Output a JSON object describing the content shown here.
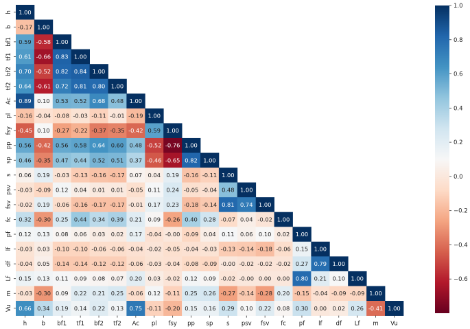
{
  "chart_data": {
    "type": "heatmap",
    "title": "",
    "xlabel": "",
    "ylabel": "",
    "labels": [
      "h",
      "b",
      "bf1",
      "tf1",
      "bf2",
      "tf2",
      "Ac",
      "pl",
      "fsy",
      "pp",
      "sp",
      "s",
      "psv",
      "fsv",
      "fc",
      "pf",
      "lf",
      "df",
      "Lf",
      "m",
      "Vu"
    ],
    "matrix": [
      [
        "1.00"
      ],
      [
        "-0.17",
        "1.00"
      ],
      [
        "0.59",
        "-0.58",
        "1.00"
      ],
      [
        "0.61",
        "-0.66",
        "0.83",
        "1.00"
      ],
      [
        "0.70",
        "-0.52",
        "0.82",
        "0.84",
        "1.00"
      ],
      [
        "0.64",
        "-0.61",
        "0.72",
        "0.81",
        "0.80",
        "1.00"
      ],
      [
        "0.89",
        "0.10",
        "0.53",
        "0.52",
        "0.68",
        "0.48",
        "1.00"
      ],
      [
        "-0.16",
        "-0.04",
        "-0.08",
        "-0.03",
        "-0.11",
        "-0.01",
        "-0.19",
        "1.00"
      ],
      [
        "-0.45",
        "0.10",
        "-0.27",
        "-0.22",
        "-0.37",
        "-0.35",
        "-0.42",
        "0.59",
        "1.00"
      ],
      [
        "0.56",
        "-0.42",
        "0.56",
        "0.58",
        "0.64",
        "0.60",
        "0.48",
        "-0.52",
        "-0.76",
        "1.00"
      ],
      [
        "0.46",
        "-0.35",
        "0.47",
        "0.44",
        "0.52",
        "0.51",
        "0.37",
        "-0.46",
        "-0.65",
        "0.82",
        "1.00"
      ],
      [
        "0.06",
        "0.19",
        "-0.03",
        "-0.13",
        "-0.16",
        "-0.17",
        "0.07",
        "0.04",
        "0.19",
        "-0.16",
        "-0.11",
        "1.00"
      ],
      [
        "-0.03",
        "-0.09",
        "0.12",
        "0.04",
        "0.01",
        "0.01",
        "-0.05",
        "0.11",
        "0.24",
        "-0.05",
        "-0.04",
        "0.48",
        "1.00"
      ],
      [
        "-0.02",
        "0.19",
        "-0.06",
        "-0.16",
        "-0.17",
        "-0.17",
        "-0.01",
        "0.17",
        "0.23",
        "-0.18",
        "-0.14",
        "0.81",
        "0.74",
        "1.00"
      ],
      [
        "0.32",
        "-0.30",
        "0.25",
        "0.44",
        "0.34",
        "0.39",
        "0.21",
        "0.09",
        "-0.26",
        "0.40",
        "0.28",
        "-0.07",
        "0.04",
        "-0.02",
        "1.00"
      ],
      [
        "0.12",
        "0.13",
        "0.08",
        "0.06",
        "0.03",
        "0.02",
        "0.17",
        "-0.04",
        "-0.00",
        "-0.09",
        "0.04",
        "0.11",
        "0.06",
        "0.10",
        "0.02",
        "1.00"
      ],
      [
        "-0.03",
        "0.03",
        "-0.10",
        "-0.10",
        "-0.06",
        "-0.06",
        "-0.04",
        "-0.02",
        "-0.05",
        "-0.04",
        "-0.03",
        "-0.13",
        "-0.14",
        "-0.18",
        "-0.06",
        "0.15",
        "1.00"
      ],
      [
        "-0.04",
        "0.05",
        "-0.14",
        "-0.14",
        "-0.12",
        "-0.12",
        "-0.06",
        "-0.03",
        "-0.04",
        "-0.08",
        "-0.09",
        "-0.00",
        "-0.02",
        "-0.02",
        "-0.02",
        "0.27",
        "0.79",
        "1.00"
      ],
      [
        "0.15",
        "0.13",
        "0.11",
        "0.09",
        "0.08",
        "0.07",
        "0.20",
        "0.03",
        "-0.02",
        "0.12",
        "0.09",
        "-0.02",
        "-0.00",
        "0.00",
        "0.00",
        "0.80",
        "0.21",
        "0.10",
        "1.00"
      ],
      [
        "-0.03",
        "-0.30",
        "0.09",
        "0.22",
        "0.21",
        "0.25",
        "-0.06",
        "0.12",
        "-0.11",
        "0.25",
        "0.26",
        "-0.27",
        "-0.14",
        "-0.28",
        "0.20",
        "-0.15",
        "-0.04",
        "-0.09",
        "-0.09",
        "1.00"
      ],
      [
        "0.66",
        "0.34",
        "0.19",
        "0.14",
        "0.22",
        "0.13",
        "0.75",
        "-0.11",
        "-0.20",
        "0.15",
        "0.16",
        "0.29",
        "0.10",
        "0.22",
        "0.08",
        "0.30",
        "0.00",
        "0.02",
        "0.26",
        "-0.41",
        "1.00"
      ]
    ],
    "colorbar": {
      "range": [
        -0.8,
        1.0
      ],
      "ticks": [
        "1.0",
        "0.8",
        "0.6",
        "0.4",
        "0.2",
        "0.0",
        "−0.2",
        "−0.4",
        "−0.6"
      ],
      "tick_values": [
        1.0,
        0.8,
        0.6,
        0.4,
        0.2,
        0.0,
        -0.2,
        -0.4,
        -0.6
      ],
      "colormap": "RdBu"
    },
    "grid": false,
    "legend": "colorbar-right"
  }
}
